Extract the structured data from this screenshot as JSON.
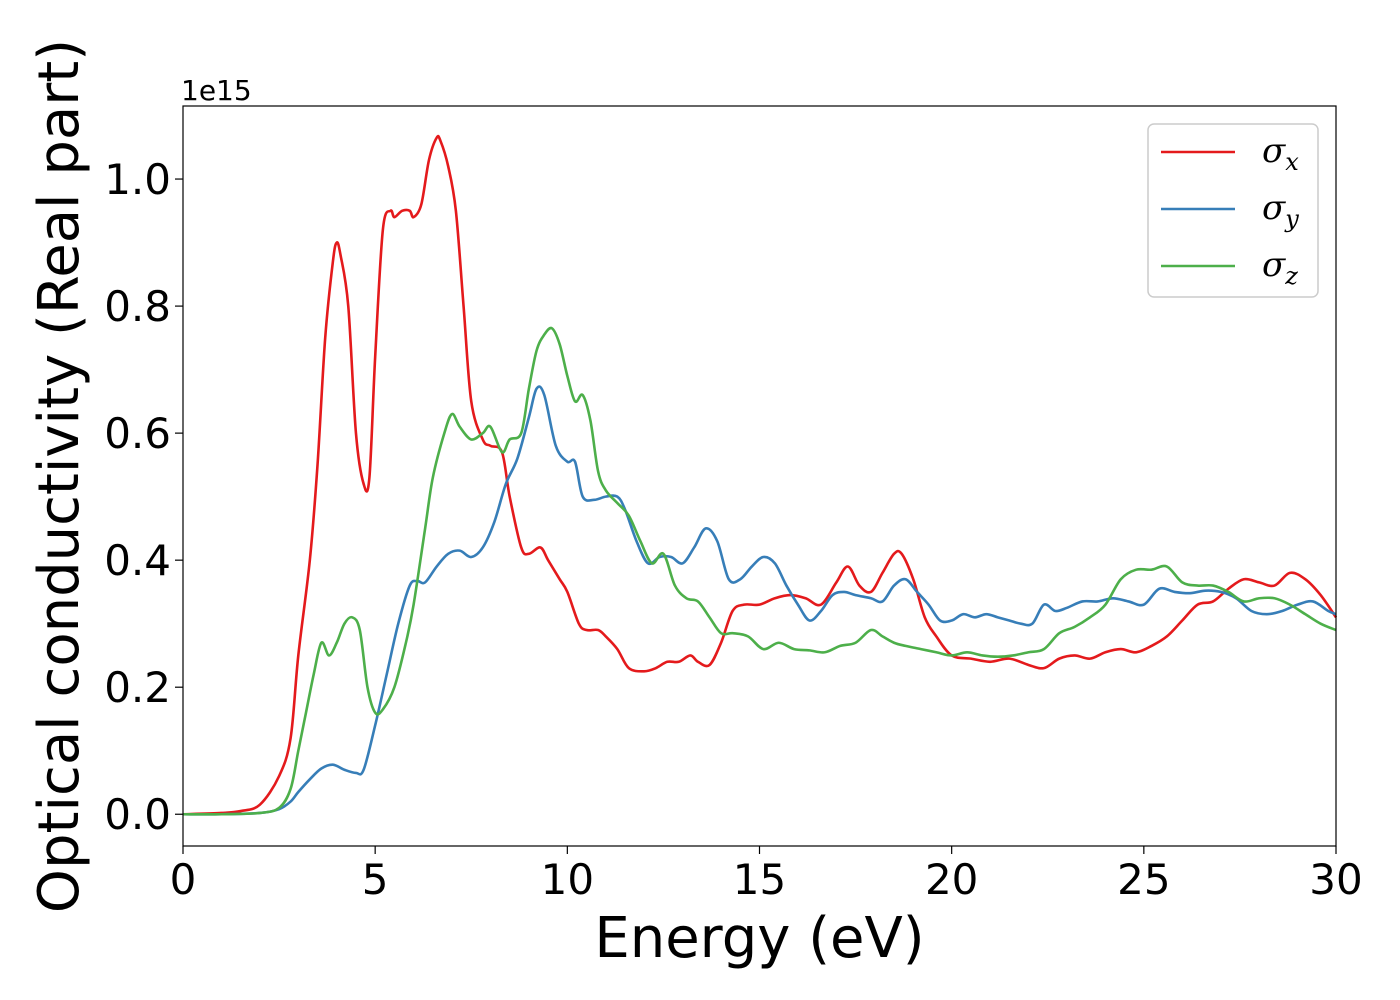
{
  "chart_data": {
    "type": "line",
    "xlabel": "Energy (eV)",
    "ylabel": "Optical conductivity (Real part)",
    "y_offset_label": "1e15",
    "xlim": [
      0,
      30
    ],
    "ylim": [
      -0.05,
      1.115
    ],
    "xticks": [
      0,
      5,
      10,
      15,
      20,
      25,
      30
    ],
    "xtick_labels": [
      "0",
      "5",
      "10",
      "15",
      "20",
      "25",
      "30"
    ],
    "yticks": [
      0.0,
      0.2,
      0.4,
      0.6,
      0.8,
      1.0
    ],
    "ytick_labels": [
      "0.0",
      "0.2",
      "0.4",
      "0.6",
      "0.8",
      "1.0"
    ],
    "grid": false,
    "legend_position": "top-right",
    "series": [
      {
        "name": "σx",
        "color": "#e41a1c",
        "x": [
          0,
          1,
          1.5,
          2,
          2.5,
          2.8,
          3,
          3.3,
          3.5,
          3.7,
          3.9,
          4.0,
          4.1,
          4.3,
          4.5,
          4.7,
          4.85,
          5.0,
          5.2,
          5.4,
          5.5,
          5.7,
          5.9,
          6.0,
          6.2,
          6.4,
          6.6,
          6.7,
          6.9,
          7.1,
          7.3,
          7.5,
          7.8,
          8.0,
          8.3,
          8.5,
          8.8,
          9.0,
          9.3,
          9.5,
          9.8,
          10.0,
          10.3,
          10.5,
          10.8,
          11.0,
          11.3,
          11.6,
          12.0,
          12.3,
          12.6,
          12.9,
          13.2,
          13.4,
          13.7,
          14.0,
          14.3,
          14.6,
          15.0,
          15.4,
          15.8,
          16.2,
          16.6,
          17.0,
          17.3,
          17.6,
          17.9,
          18.2,
          18.5,
          18.7,
          19.0,
          19.3,
          19.6,
          20.0,
          20.5,
          21.0,
          21.5,
          22.0,
          22.4,
          22.8,
          23.2,
          23.6,
          24.0,
          24.4,
          24.8,
          25.2,
          25.6,
          26.0,
          26.4,
          26.8,
          27.2,
          27.6,
          28.0,
          28.4,
          28.8,
          29.2,
          29.6,
          30.0
        ],
        "values": [
          0.0,
          0.002,
          0.005,
          0.015,
          0.06,
          0.12,
          0.25,
          0.4,
          0.55,
          0.75,
          0.87,
          0.9,
          0.88,
          0.8,
          0.6,
          0.52,
          0.53,
          0.72,
          0.92,
          0.95,
          0.94,
          0.95,
          0.95,
          0.94,
          0.96,
          1.03,
          1.065,
          1.06,
          1.02,
          0.95,
          0.8,
          0.65,
          0.59,
          0.58,
          0.57,
          0.5,
          0.42,
          0.41,
          0.42,
          0.4,
          0.37,
          0.35,
          0.3,
          0.29,
          0.29,
          0.28,
          0.26,
          0.23,
          0.225,
          0.23,
          0.24,
          0.24,
          0.25,
          0.24,
          0.235,
          0.27,
          0.32,
          0.33,
          0.33,
          0.34,
          0.345,
          0.34,
          0.33,
          0.365,
          0.39,
          0.36,
          0.35,
          0.38,
          0.41,
          0.41,
          0.37,
          0.31,
          0.28,
          0.25,
          0.245,
          0.24,
          0.245,
          0.235,
          0.23,
          0.245,
          0.25,
          0.245,
          0.255,
          0.26,
          0.255,
          0.265,
          0.28,
          0.305,
          0.33,
          0.335,
          0.355,
          0.37,
          0.365,
          0.36,
          0.38,
          0.37,
          0.345,
          0.31
        ]
      },
      {
        "name": "σy",
        "color": "#377eb8",
        "x": [
          0,
          1,
          2,
          2.5,
          2.8,
          3.0,
          3.3,
          3.6,
          3.9,
          4.2,
          4.5,
          4.7,
          5.0,
          5.3,
          5.6,
          5.9,
          6.1,
          6.3,
          6.6,
          6.9,
          7.2,
          7.5,
          7.8,
          8.1,
          8.4,
          8.7,
          9.0,
          9.2,
          9.4,
          9.7,
          10.0,
          10.2,
          10.4,
          10.7,
          11.0,
          11.3,
          11.5,
          11.8,
          12.1,
          12.4,
          12.7,
          13.0,
          13.3,
          13.6,
          13.9,
          14.2,
          14.5,
          14.8,
          15.1,
          15.4,
          15.7,
          16.0,
          16.3,
          16.6,
          16.9,
          17.2,
          17.5,
          17.9,
          18.2,
          18.5,
          18.8,
          19.1,
          19.4,
          19.7,
          20.0,
          20.3,
          20.6,
          20.9,
          21.2,
          21.5,
          21.8,
          22.1,
          22.4,
          22.7,
          23.0,
          23.4,
          23.8,
          24.2,
          24.6,
          25.0,
          25.4,
          25.8,
          26.2,
          26.6,
          27.0,
          27.4,
          27.8,
          28.2,
          28.6,
          29.0,
          29.4,
          29.8,
          30.0
        ],
        "values": [
          0.0,
          0.0,
          0.002,
          0.008,
          0.02,
          0.035,
          0.055,
          0.072,
          0.078,
          0.07,
          0.065,
          0.07,
          0.14,
          0.22,
          0.3,
          0.36,
          0.367,
          0.365,
          0.39,
          0.41,
          0.415,
          0.405,
          0.42,
          0.46,
          0.52,
          0.56,
          0.625,
          0.67,
          0.66,
          0.58,
          0.555,
          0.555,
          0.5,
          0.495,
          0.5,
          0.5,
          0.48,
          0.43,
          0.395,
          0.405,
          0.405,
          0.395,
          0.42,
          0.45,
          0.43,
          0.37,
          0.37,
          0.39,
          0.405,
          0.395,
          0.36,
          0.33,
          0.305,
          0.32,
          0.345,
          0.35,
          0.345,
          0.34,
          0.335,
          0.36,
          0.37,
          0.35,
          0.33,
          0.305,
          0.305,
          0.315,
          0.31,
          0.315,
          0.31,
          0.305,
          0.3,
          0.3,
          0.33,
          0.32,
          0.325,
          0.335,
          0.335,
          0.34,
          0.335,
          0.33,
          0.355,
          0.35,
          0.348,
          0.352,
          0.35,
          0.34,
          0.32,
          0.315,
          0.32,
          0.33,
          0.335,
          0.32,
          0.315
        ]
      },
      {
        "name": "σz",
        "color": "#4daf4a",
        "x": [
          0,
          1,
          2,
          2.5,
          2.8,
          3.0,
          3.2,
          3.4,
          3.6,
          3.8,
          4.0,
          4.2,
          4.4,
          4.6,
          4.8,
          5.0,
          5.2,
          5.5,
          5.8,
          6.0,
          6.3,
          6.5,
          6.8,
          7.0,
          7.2,
          7.5,
          7.8,
          8.0,
          8.3,
          8.5,
          8.8,
          9.0,
          9.2,
          9.4,
          9.6,
          9.8,
          10.0,
          10.2,
          10.4,
          10.6,
          10.8,
          11.0,
          11.3,
          11.6,
          11.9,
          12.2,
          12.5,
          12.8,
          13.1,
          13.4,
          13.7,
          14.0,
          14.3,
          14.7,
          15.1,
          15.5,
          15.9,
          16.3,
          16.7,
          17.1,
          17.5,
          17.9,
          18.2,
          18.5,
          18.8,
          19.2,
          19.6,
          20.0,
          20.4,
          20.8,
          21.2,
          21.6,
          22.0,
          22.4,
          22.8,
          23.2,
          23.6,
          24.0,
          24.4,
          24.8,
          25.2,
          25.6,
          26.0,
          26.4,
          26.8,
          27.2,
          27.6,
          28.0,
          28.4,
          28.8,
          29.2,
          29.6,
          30.0
        ],
        "values": [
          0.0,
          0.0,
          0.002,
          0.01,
          0.04,
          0.1,
          0.16,
          0.22,
          0.27,
          0.25,
          0.27,
          0.3,
          0.31,
          0.29,
          0.2,
          0.16,
          0.165,
          0.2,
          0.27,
          0.33,
          0.45,
          0.53,
          0.6,
          0.63,
          0.61,
          0.59,
          0.6,
          0.61,
          0.57,
          0.59,
          0.6,
          0.67,
          0.73,
          0.755,
          0.765,
          0.74,
          0.69,
          0.65,
          0.66,
          0.62,
          0.54,
          0.51,
          0.49,
          0.47,
          0.43,
          0.395,
          0.41,
          0.36,
          0.34,
          0.335,
          0.31,
          0.285,
          0.285,
          0.28,
          0.26,
          0.27,
          0.26,
          0.258,
          0.255,
          0.265,
          0.27,
          0.29,
          0.28,
          0.27,
          0.265,
          0.26,
          0.255,
          0.25,
          0.255,
          0.25,
          0.248,
          0.25,
          0.255,
          0.26,
          0.285,
          0.295,
          0.31,
          0.33,
          0.37,
          0.385,
          0.385,
          0.39,
          0.365,
          0.36,
          0.36,
          0.35,
          0.335,
          0.34,
          0.34,
          0.33,
          0.315,
          0.3,
          0.29
        ]
      }
    ]
  }
}
